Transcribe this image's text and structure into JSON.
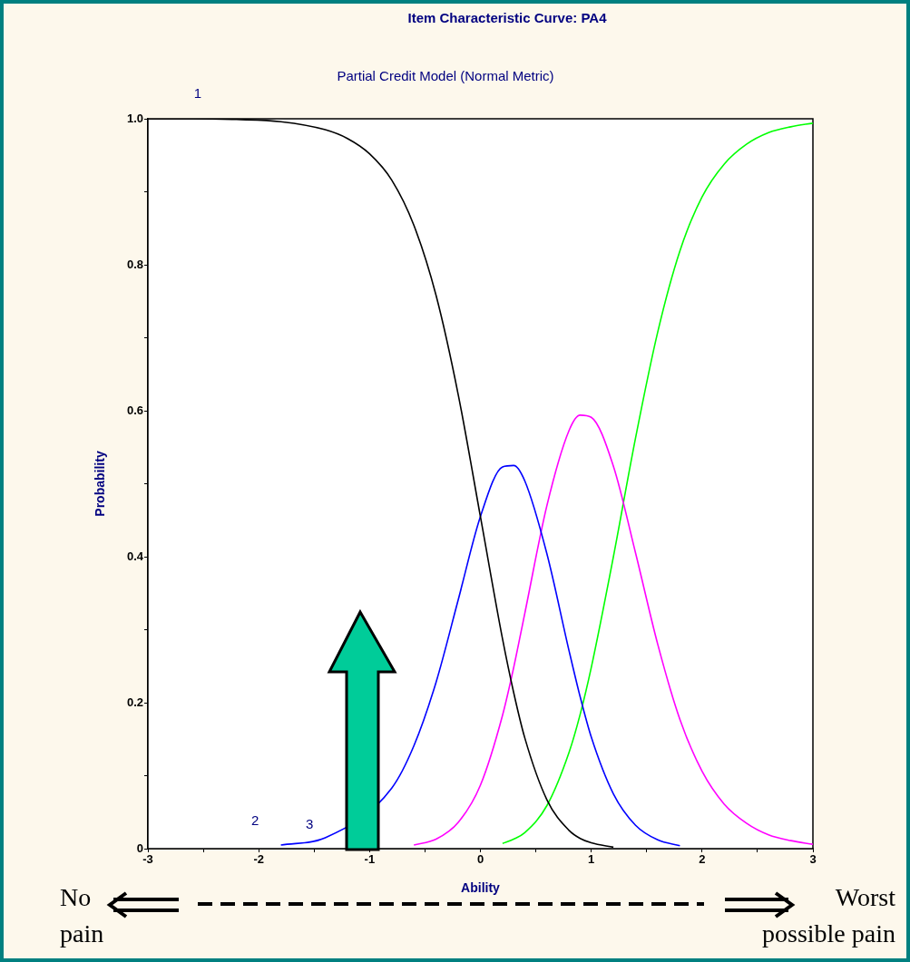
{
  "chart_data": {
    "type": "line",
    "title": "Item Characteristic Curve: PA4",
    "subtitle": "Partial Credit Model (Normal Metric)",
    "xlabel": "Ability",
    "ylabel": "Probability",
    "x": [
      -3,
      -2.6,
      -2.2,
      -1.8,
      -1.4,
      -1.2,
      -1,
      -0.8,
      -0.6,
      -0.4,
      -0.2,
      0,
      0.2,
      0.3,
      0.4,
      0.6,
      0.8,
      0.9,
      1,
      1.2,
      1.4,
      1.6,
      1.8,
      2,
      2.2,
      2.4,
      2.6,
      2.8,
      3
    ],
    "series": [
      {
        "color": "#000000",
        "values": [
          1.0,
          1.0,
          0.999,
          0.996,
          0.985,
          0.973,
          0.952,
          0.916,
          0.854,
          0.758,
          0.622,
          0.455,
          0.287,
          0.214,
          0.152,
          0.067,
          0.025,
          0.014,
          0.008,
          0.002,
          null,
          null,
          null,
          null,
          null,
          null,
          null,
          null,
          null
        ]
      },
      {
        "color": "#0000ff",
        "values": [
          null,
          null,
          null,
          0.005,
          0.015,
          null,
          null,
          0.083,
          0.141,
          0.228,
          0.341,
          0.455,
          0.523,
          0.525,
          0.504,
          0.404,
          0.271,
          0.208,
          0.153,
          0.075,
          0.032,
          0.012,
          0.004,
          null,
          null,
          null,
          null,
          null,
          null
        ]
      },
      {
        "color": "#ff00ff",
        "values": [
          null,
          null,
          null,
          null,
          null,
          null,
          null,
          null,
          0.005,
          0.013,
          0.036,
          0.087,
          0.183,
          0.248,
          0.322,
          0.47,
          0.573,
          0.594,
          0.591,
          0.524,
          0.405,
          0.28,
          0.177,
          0.106,
          0.061,
          0.035,
          0.019,
          0.011,
          0.006
        ]
      },
      {
        "color": "#00ff00",
        "values": [
          null,
          null,
          null,
          null,
          null,
          null,
          null,
          null,
          null,
          null,
          null,
          null,
          0.007,
          0.013,
          0.022,
          0.059,
          0.132,
          0.184,
          0.248,
          0.4,
          0.563,
          0.708,
          0.819,
          0.893,
          0.938,
          0.965,
          0.981,
          0.989,
          0.994
        ]
      }
    ],
    "xlim": [
      -3,
      3
    ],
    "xticks": [
      -3,
      {
        "value": -2.5,
        "label": null
      },
      -2,
      {
        "value": -1.5,
        "label": null
      },
      -1,
      {
        "value": -0.5,
        "label": null
      },
      0,
      {
        "value": 0.5,
        "label": null
      },
      1,
      {
        "value": 1.5,
        "label": null
      },
      2,
      {
        "value": 2.5,
        "label": null
      },
      3
    ],
    "ylim": [
      0,
      1
    ],
    "yticks": [
      0,
      {
        "value": 0.1,
        "label": null
      },
      0.2,
      {
        "value": 0.3,
        "label": null
      },
      0.4,
      {
        "value": 0.5,
        "label": null
      },
      0.6,
      {
        "value": 0.7,
        "label": null
      },
      0.8,
      {
        "value": 0.9,
        "label": null
      },
      {
        "value": 1,
        "label": "1.0"
      }
    ],
    "marker": "none",
    "annotations": [
      {
        "text": "1",
        "x": -2.55,
        "y": 1.0
      },
      "2",
      "3",
      "No pain",
      "Worst possible pain"
    ]
  }
}
